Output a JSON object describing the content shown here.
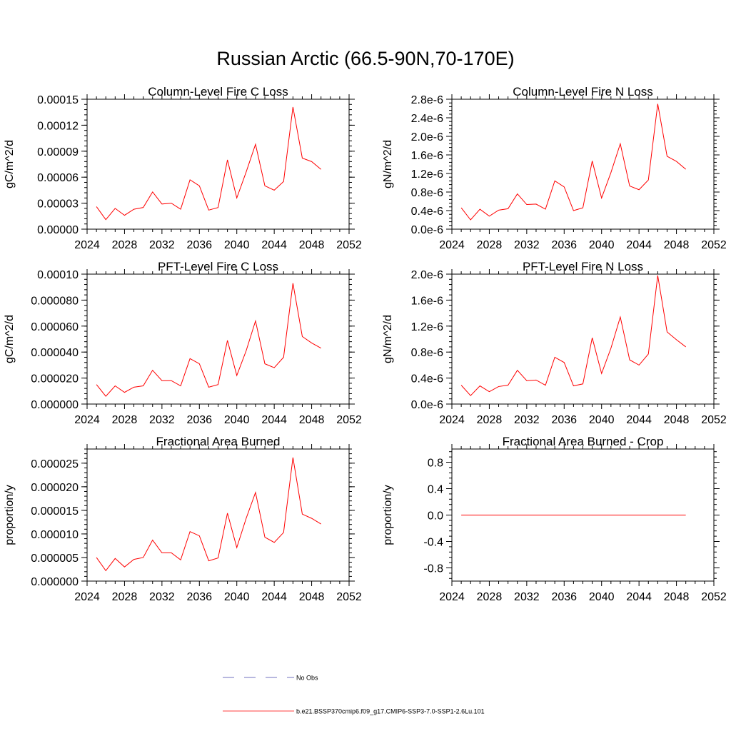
{
  "figure": {
    "title": "Russian Arctic (66.5-90N,70-170E)"
  },
  "legend": {
    "items": [
      {
        "label": "No Obs",
        "color": "#4444aa",
        "dash": "dashed"
      },
      {
        "label": "b.e21.BSSP370cmip6.f09_g17.CMIP6-SSP3-7.0-SSP1-2.6Lu.101",
        "color": "#ff0000",
        "dash": "solid"
      }
    ]
  },
  "chart_data": [
    {
      "type": "line",
      "title": "Column-Level Fire C Loss",
      "ylabel": "gC/m^2/d",
      "xlim": [
        2024,
        2052
      ],
      "ylim": [
        0,
        0.00015
      ],
      "xticks": [
        2024,
        2028,
        2032,
        2036,
        2040,
        2044,
        2048,
        2052
      ],
      "xtick_labels": [
        "2024",
        "2028",
        "2032",
        "2036",
        "2040",
        "2044",
        "2048",
        "2052"
      ],
      "yticks": [
        0,
        3e-05,
        6e-05,
        9e-05,
        0.00012,
        0.00015
      ],
      "ytick_labels": [
        "0.00000",
        "0.00003",
        "0.00006",
        "0.00009",
        "0.00012",
        "0.00015"
      ],
      "series": [
        {
          "color": "#ff0000",
          "x": [
            2025,
            2026,
            2027,
            2028,
            2029,
            2030,
            2031,
            2032,
            2033,
            2034,
            2035,
            2036,
            2037,
            2038,
            2039,
            2040,
            2041,
            2042,
            2043,
            2044,
            2045,
            2046,
            2047,
            2048,
            2049
          ],
          "y": [
            2.6e-05,
            1.1e-05,
            2.4e-05,
            1.6e-05,
            2.3e-05,
            2.5e-05,
            4.3e-05,
            2.9e-05,
            3e-05,
            2.3e-05,
            5.7e-05,
            5e-05,
            2.2e-05,
            2.5e-05,
            8e-05,
            3.6e-05,
            6.6e-05,
            9.8e-05,
            5e-05,
            4.5e-05,
            5.5e-05,
            0.000141,
            8.2e-05,
            7.8e-05,
            6.9e-05
          ]
        }
      ]
    },
    {
      "type": "line",
      "title": "Column-Level Fire N Loss",
      "ylabel": "gN/m^2/d",
      "xlim": [
        2024,
        2052
      ],
      "ylim": [
        0,
        2.8e-06
      ],
      "xticks": [
        2024,
        2028,
        2032,
        2036,
        2040,
        2044,
        2048,
        2052
      ],
      "xtick_labels": [
        "2024",
        "2028",
        "2032",
        "2036",
        "2040",
        "2044",
        "2048",
        "2052"
      ],
      "yticks": [
        0,
        4e-07,
        8e-07,
        1.2e-06,
        1.6e-06,
        2e-06,
        2.4e-06,
        2.8e-06
      ],
      "ytick_labels": [
        "0.0e-6",
        "0.4e-6",
        "0.8e-6",
        "1.2e-6",
        "1.6e-6",
        "2.0e-6",
        "2.4e-6",
        "2.8e-6"
      ],
      "series": [
        {
          "color": "#ff0000",
          "x": [
            2025,
            2026,
            2027,
            2028,
            2029,
            2030,
            2031,
            2032,
            2033,
            2034,
            2035,
            2036,
            2037,
            2038,
            2039,
            2040,
            2041,
            2042,
            2043,
            2044,
            2045,
            2046,
            2047,
            2048,
            2049
          ],
          "y": [
            4.6e-07,
            2e-07,
            4.3e-07,
            2.8e-07,
            4.1e-07,
            4.4e-07,
            7.6e-07,
            5.3e-07,
            5.4e-07,
            4.3e-07,
            1.04e-06,
            9.1e-07,
            4e-07,
            4.6e-07,
            1.47e-06,
            6.7e-07,
            1.22e-06,
            1.84e-06,
            9.3e-07,
            8.5e-07,
            1.06e-06,
            2.7e-06,
            1.57e-06,
            1.46e-06,
            1.29e-06
          ]
        }
      ]
    },
    {
      "type": "line",
      "title": "PFT-Level Fire C Loss",
      "ylabel": "gC/m^2/d",
      "xlim": [
        2024,
        2052
      ],
      "ylim": [
        0,
        0.0001
      ],
      "xticks": [
        2024,
        2028,
        2032,
        2036,
        2040,
        2044,
        2048,
        2052
      ],
      "xtick_labels": [
        "2024",
        "2028",
        "2032",
        "2036",
        "2040",
        "2044",
        "2048",
        "2052"
      ],
      "yticks": [
        0,
        2e-05,
        4e-05,
        6e-05,
        8e-05,
        0.0001
      ],
      "ytick_labels": [
        "0.000000",
        "0.000020",
        "0.000040",
        "0.000060",
        "0.000080",
        "0.00010"
      ],
      "series": [
        {
          "color": "#ff0000",
          "x": [
            2025,
            2026,
            2027,
            2028,
            2029,
            2030,
            2031,
            2032,
            2033,
            2034,
            2035,
            2036,
            2037,
            2038,
            2039,
            2040,
            2041,
            2042,
            2043,
            2044,
            2045,
            2046,
            2047,
            2048,
            2049
          ],
          "y": [
            1.5e-05,
            6e-06,
            1.4e-05,
            9e-06,
            1.3e-05,
            1.4e-05,
            2.6e-05,
            1.8e-05,
            1.8e-05,
            1.4e-05,
            3.5e-05,
            3.1e-05,
            1.3e-05,
            1.5e-05,
            4.9e-05,
            2.2e-05,
            4.1e-05,
            6.4e-05,
            3.1e-05,
            2.8e-05,
            3.6e-05,
            9.3e-05,
            5.2e-05,
            4.7e-05,
            4.3e-05
          ]
        }
      ]
    },
    {
      "type": "line",
      "title": "PFT-Level Fire N Loss",
      "ylabel": "gN/m^2/d",
      "xlim": [
        2024,
        2052
      ],
      "ylim": [
        0,
        2e-06
      ],
      "xticks": [
        2024,
        2028,
        2032,
        2036,
        2040,
        2044,
        2048,
        2052
      ],
      "xtick_labels": [
        "2024",
        "2028",
        "2032",
        "2036",
        "2040",
        "2044",
        "2048",
        "2052"
      ],
      "yticks": [
        0,
        4e-07,
        8e-07,
        1.2e-06,
        1.6e-06,
        2e-06
      ],
      "ytick_labels": [
        "0.0e-6",
        "0.4e-6",
        "0.8e-6",
        "1.2e-6",
        "1.6e-6",
        "2.0e-6"
      ],
      "series": [
        {
          "color": "#ff0000",
          "x": [
            2025,
            2026,
            2027,
            2028,
            2029,
            2030,
            2031,
            2032,
            2033,
            2034,
            2035,
            2036,
            2037,
            2038,
            2039,
            2040,
            2041,
            2042,
            2043,
            2044,
            2045,
            2046,
            2047,
            2048,
            2049
          ],
          "y": [
            2.9e-07,
            1.3e-07,
            2.8e-07,
            1.9e-07,
            2.7e-07,
            2.9e-07,
            5.2e-07,
            3.6e-07,
            3.7e-07,
            2.9e-07,
            7.2e-07,
            6.4e-07,
            2.8e-07,
            3.1e-07,
            1.02e-06,
            4.7e-07,
            8.6e-07,
            1.34e-06,
            6.8e-07,
            6e-07,
            7.7e-07,
            1.98e-06,
            1.11e-06,
            9.9e-07,
            8.8e-07
          ]
        }
      ]
    },
    {
      "type": "line",
      "title": "Fractional Area Burned",
      "ylabel": "proportion/y",
      "xlim": [
        2024,
        2052
      ],
      "ylim": [
        0,
        2.8e-05
      ],
      "xticks": [
        2024,
        2028,
        2032,
        2036,
        2040,
        2044,
        2048,
        2052
      ],
      "xtick_labels": [
        "2024",
        "2028",
        "2032",
        "2036",
        "2040",
        "2044",
        "2048",
        "2052"
      ],
      "yticks": [
        0,
        5e-06,
        1e-05,
        1.5e-05,
        2e-05,
        2.5e-05
      ],
      "ytick_labels": [
        "0.000000",
        "0.000005",
        "0.000010",
        "0.000015",
        "0.000020",
        "0.000025"
      ],
      "series": [
        {
          "color": "#ff0000",
          "x": [
            2025,
            2026,
            2027,
            2028,
            2029,
            2030,
            2031,
            2032,
            2033,
            2034,
            2035,
            2036,
            2037,
            2038,
            2039,
            2040,
            2041,
            2042,
            2043,
            2044,
            2045,
            2046,
            2047,
            2048,
            2049
          ],
          "y": [
            5e-06,
            2.2e-06,
            4.8e-06,
            3e-06,
            4.6e-06,
            5e-06,
            8.7e-06,
            6e-06,
            6e-06,
            4.5e-06,
            1.05e-05,
            9.6e-06,
            4.3e-06,
            4.9e-06,
            1.44e-05,
            7.1e-06,
            1.33e-05,
            1.88e-05,
            9.3e-06,
            8.2e-06,
            1.03e-05,
            2.62e-05,
            1.42e-05,
            1.33e-05,
            1.21e-05
          ]
        }
      ]
    },
    {
      "type": "line",
      "title": "Fractional Area Burned - Crop",
      "ylabel": "proportion/y",
      "xlim": [
        2024,
        2052
      ],
      "ylim": [
        -1.0,
        1.0
      ],
      "xticks": [
        2024,
        2028,
        2032,
        2036,
        2040,
        2044,
        2048,
        2052
      ],
      "xtick_labels": [
        "2024",
        "2028",
        "2032",
        "2036",
        "2040",
        "2044",
        "2048",
        "2052"
      ],
      "yticks": [
        -0.8,
        -0.4,
        0,
        0.4,
        0.8
      ],
      "ytick_labels": [
        "-0.8",
        "-0.4",
        "0.0",
        "0.4",
        "0.8"
      ],
      "series": [
        {
          "color": "#ff0000",
          "x": [
            2025,
            2026,
            2027,
            2028,
            2029,
            2030,
            2031,
            2032,
            2033,
            2034,
            2035,
            2036,
            2037,
            2038,
            2039,
            2040,
            2041,
            2042,
            2043,
            2044,
            2045,
            2046,
            2047,
            2048,
            2049
          ],
          "y": [
            0,
            0,
            0,
            0,
            0,
            0,
            0,
            0,
            0,
            0,
            0,
            0,
            0,
            0,
            0,
            0,
            0,
            0,
            0,
            0,
            0,
            0,
            0,
            0,
            0
          ]
        }
      ]
    }
  ]
}
